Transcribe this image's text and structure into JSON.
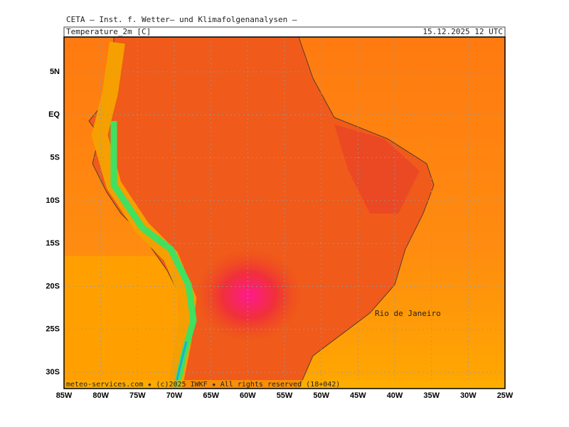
{
  "header": {
    "institute": "CETA — Inst. f. Wetter— und Klimafolgenanalysen —",
    "variable": "Temperature_2m [C]",
    "datetime": "15.12.2025 12 UTC"
  },
  "map": {
    "lat_labels": [
      "5N",
      "EQ",
      "5S",
      "10S",
      "15S",
      "20S",
      "25S",
      "30S"
    ],
    "lon_labels": [
      "85W",
      "80W",
      "75W",
      "70W",
      "65W",
      "60W",
      "55W",
      "50W",
      "45W",
      "40W",
      "35W",
      "30W",
      "25W"
    ],
    "place_label": "Rio de Janeiro",
    "footer": "meteo-services.com ★ (c)2025 IWKF ★ All rights reserved (18+042)"
  }
}
